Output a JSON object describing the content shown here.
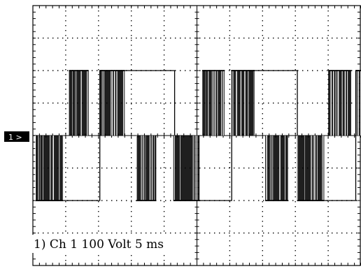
{
  "chart_data": {
    "type": "line",
    "channel_marker": "1 >",
    "readout": "1) Ch 1 100 Volt  5 ms",
    "grid": true,
    "divisions": {
      "x": 10,
      "y": 8
    },
    "volts_per_div": 100,
    "ms_per_div": 5,
    "xlim": [
      0,
      50
    ],
    "ylim": [
      -400,
      400
    ],
    "series": [
      {
        "x": [
          0,
          0.6,
          0.6,
          10.2,
          10.2,
          21.6,
          21.6,
          30.3,
          30.3,
          40.3,
          40.3,
          49.2,
          49.2,
          50
        ],
        "y": [
          0,
          0,
          -200,
          -200,
          200,
          200,
          -200,
          -200,
          200,
          200,
          -200,
          -200,
          200,
          200
        ]
      }
    ],
    "switching_bands": [
      {
        "x0": 0.4,
        "x1": 4.6,
        "level": -200
      },
      {
        "x0": 5.5,
        "x1": 8.5,
        "level": 200
      },
      {
        "x0": 10.2,
        "x1": 14.0,
        "level": 200
      },
      {
        "x0": 15.8,
        "x1": 18.8,
        "level": -200
      },
      {
        "x0": 21.4,
        "x1": 25.4,
        "level": -200
      },
      {
        "x0": 25.8,
        "x1": 29.2,
        "level": 200
      },
      {
        "x0": 30.2,
        "x1": 33.8,
        "level": 200
      },
      {
        "x0": 35.4,
        "x1": 38.9,
        "level": -200
      },
      {
        "x0": 40.3,
        "x1": 44.4,
        "level": -200
      },
      {
        "x0": 45.0,
        "x1": 48.5,
        "level": 200
      },
      {
        "x0": 49.2,
        "x1": 50.0,
        "level": 200
      }
    ]
  }
}
